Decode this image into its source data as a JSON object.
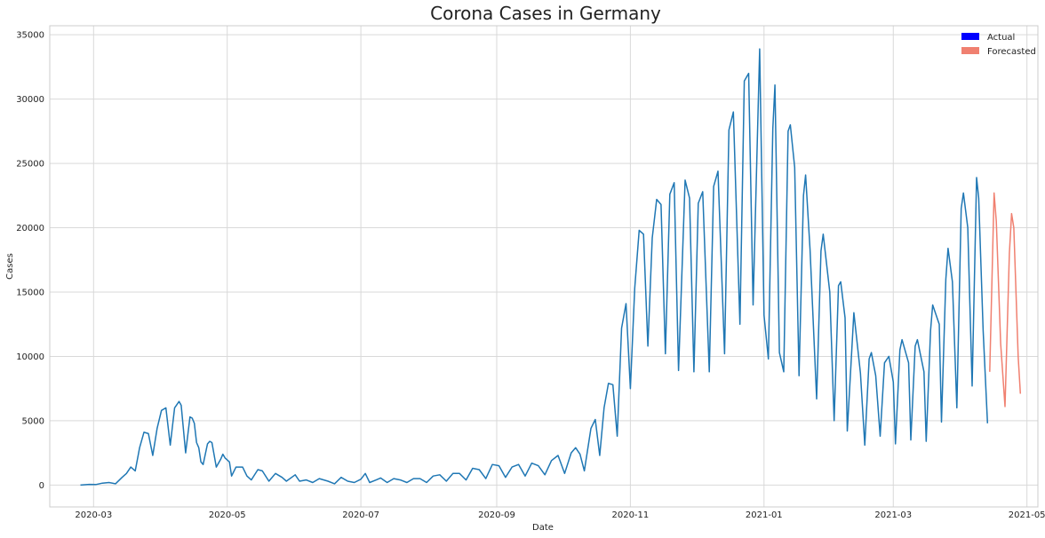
{
  "chart_data": {
    "type": "line",
    "title": "Corona Cases in Germany",
    "xlabel": "Date",
    "ylabel": "Cases",
    "x_tick_labels": [
      "2020-03",
      "2020-05",
      "2020-07",
      "2020-09",
      "2020-11",
      "2021-01",
      "2021-03",
      "2021-05"
    ],
    "y_tick_labels": [
      "0",
      "5000",
      "10000",
      "15000",
      "20000",
      "25000",
      "30000",
      "35000"
    ],
    "xlim": [
      "2020-02-10",
      "2021-05-06"
    ],
    "ylim": [
      -1700,
      35700
    ],
    "grid": true,
    "legend_position": "top-right",
    "legend": [
      {
        "label": "Actual",
        "color": "#0000ff"
      },
      {
        "label": "Forecasted",
        "color": "#f08070"
      }
    ],
    "series": [
      {
        "name": "Actual",
        "color": "#1f77b4",
        "points": [
          [
            "2020-02-24",
            0
          ],
          [
            "2020-02-28",
            50
          ],
          [
            "2020-03-02",
            40
          ],
          [
            "2020-03-05",
            150
          ],
          [
            "2020-03-08",
            200
          ],
          [
            "2020-03-11",
            100
          ],
          [
            "2020-03-14",
            600
          ],
          [
            "2020-03-16",
            900
          ],
          [
            "2020-03-18",
            1400
          ],
          [
            "2020-03-20",
            1100
          ],
          [
            "2020-03-22",
            2900
          ],
          [
            "2020-03-24",
            4100
          ],
          [
            "2020-03-26",
            4000
          ],
          [
            "2020-03-28",
            2300
          ],
          [
            "2020-03-30",
            4400
          ],
          [
            "2020-04-01",
            5800
          ],
          [
            "2020-04-03",
            6000
          ],
          [
            "2020-04-05",
            3100
          ],
          [
            "2020-04-07",
            6000
          ],
          [
            "2020-04-09",
            6500
          ],
          [
            "2020-04-10",
            6200
          ],
          [
            "2020-04-12",
            2500
          ],
          [
            "2020-04-14",
            5300
          ],
          [
            "2020-04-15",
            5200
          ],
          [
            "2020-04-16",
            4800
          ],
          [
            "2020-04-17",
            3300
          ],
          [
            "2020-04-18",
            2900
          ],
          [
            "2020-04-19",
            1800
          ],
          [
            "2020-04-20",
            1600
          ],
          [
            "2020-04-22",
            3200
          ],
          [
            "2020-04-23",
            3400
          ],
          [
            "2020-04-24",
            3300
          ],
          [
            "2020-04-26",
            1400
          ],
          [
            "2020-04-28",
            2000
          ],
          [
            "2020-04-29",
            2400
          ],
          [
            "2020-04-30",
            2100
          ],
          [
            "2020-05-02",
            1800
          ],
          [
            "2020-05-03",
            700
          ],
          [
            "2020-05-05",
            1400
          ],
          [
            "2020-05-08",
            1400
          ],
          [
            "2020-05-10",
            700
          ],
          [
            "2020-05-12",
            400
          ],
          [
            "2020-05-15",
            1200
          ],
          [
            "2020-05-17",
            1100
          ],
          [
            "2020-05-20",
            300
          ],
          [
            "2020-05-23",
            900
          ],
          [
            "2020-05-26",
            600
          ],
          [
            "2020-05-28",
            300
          ],
          [
            "2020-06-01",
            800
          ],
          [
            "2020-06-03",
            300
          ],
          [
            "2020-06-06",
            400
          ],
          [
            "2020-06-09",
            200
          ],
          [
            "2020-06-12",
            500
          ],
          [
            "2020-06-16",
            300
          ],
          [
            "2020-06-19",
            100
          ],
          [
            "2020-06-22",
            600
          ],
          [
            "2020-06-25",
            300
          ],
          [
            "2020-06-28",
            200
          ],
          [
            "2020-07-01",
            450
          ],
          [
            "2020-07-03",
            900
          ],
          [
            "2020-07-05",
            200
          ],
          [
            "2020-07-08",
            400
          ],
          [
            "2020-07-10",
            550
          ],
          [
            "2020-07-13",
            200
          ],
          [
            "2020-07-16",
            500
          ],
          [
            "2020-07-19",
            400
          ],
          [
            "2020-07-22",
            200
          ],
          [
            "2020-07-25",
            500
          ],
          [
            "2020-07-28",
            500
          ],
          [
            "2020-07-31",
            200
          ],
          [
            "2020-08-03",
            700
          ],
          [
            "2020-08-06",
            800
          ],
          [
            "2020-08-09",
            300
          ],
          [
            "2020-08-12",
            900
          ],
          [
            "2020-08-15",
            900
          ],
          [
            "2020-08-18",
            400
          ],
          [
            "2020-08-21",
            1300
          ],
          [
            "2020-08-24",
            1200
          ],
          [
            "2020-08-27",
            500
          ],
          [
            "2020-08-30",
            1600
          ],
          [
            "2020-09-02",
            1500
          ],
          [
            "2020-09-05",
            600
          ],
          [
            "2020-09-08",
            1400
          ],
          [
            "2020-09-11",
            1600
          ],
          [
            "2020-09-14",
            700
          ],
          [
            "2020-09-17",
            1700
          ],
          [
            "2020-09-20",
            1500
          ],
          [
            "2020-09-23",
            800
          ],
          [
            "2020-09-26",
            1900
          ],
          [
            "2020-09-29",
            2300
          ],
          [
            "2020-10-02",
            900
          ],
          [
            "2020-10-05",
            2500
          ],
          [
            "2020-10-07",
            2900
          ],
          [
            "2020-10-09",
            2400
          ],
          [
            "2020-10-11",
            1100
          ],
          [
            "2020-10-14",
            4400
          ],
          [
            "2020-10-16",
            5100
          ],
          [
            "2020-10-18",
            2300
          ],
          [
            "2020-10-20",
            6000
          ],
          [
            "2020-10-22",
            7900
          ],
          [
            "2020-10-24",
            7800
          ],
          [
            "2020-10-26",
            3800
          ],
          [
            "2020-10-28",
            12200
          ],
          [
            "2020-10-30",
            14100
          ],
          [
            "2020-11-01",
            7500
          ],
          [
            "2020-11-03",
            15300
          ],
          [
            "2020-11-05",
            19800
          ],
          [
            "2020-11-07",
            19500
          ],
          [
            "2020-11-09",
            10800
          ],
          [
            "2020-11-11",
            19200
          ],
          [
            "2020-11-13",
            22200
          ],
          [
            "2020-11-15",
            21800
          ],
          [
            "2020-11-17",
            10200
          ],
          [
            "2020-11-19",
            22600
          ],
          [
            "2020-11-21",
            23500
          ],
          [
            "2020-11-23",
            8900
          ],
          [
            "2020-11-26",
            23700
          ],
          [
            "2020-11-28",
            22300
          ],
          [
            "2020-11-30",
            8800
          ],
          [
            "2020-12-02",
            21900
          ],
          [
            "2020-12-04",
            22800
          ],
          [
            "2020-12-07",
            8800
          ],
          [
            "2020-12-09",
            23200
          ],
          [
            "2020-12-11",
            24400
          ],
          [
            "2020-12-14",
            10200
          ],
          [
            "2020-12-16",
            27600
          ],
          [
            "2020-12-18",
            29000
          ],
          [
            "2020-12-21",
            12500
          ],
          [
            "2020-12-23",
            31400
          ],
          [
            "2020-12-25",
            32000
          ],
          [
            "2020-12-27",
            14000
          ],
          [
            "2020-12-30",
            33900
          ],
          [
            "2021-01-01",
            13200
          ],
          [
            "2021-01-03",
            9800
          ],
          [
            "2021-01-05",
            27700
          ],
          [
            "2021-01-06",
            31100
          ],
          [
            "2021-01-08",
            10300
          ],
          [
            "2021-01-10",
            8800
          ],
          [
            "2021-01-12",
            27500
          ],
          [
            "2021-01-13",
            28000
          ],
          [
            "2021-01-15",
            24700
          ],
          [
            "2021-01-17",
            8500
          ],
          [
            "2021-01-19",
            22500
          ],
          [
            "2021-01-20",
            24100
          ],
          [
            "2021-01-22",
            18300
          ],
          [
            "2021-01-25",
            6700
          ],
          [
            "2021-01-27",
            18200
          ],
          [
            "2021-01-28",
            19500
          ],
          [
            "2021-01-31",
            15000
          ],
          [
            "2021-02-02",
            5000
          ],
          [
            "2021-02-04",
            15500
          ],
          [
            "2021-02-05",
            15800
          ],
          [
            "2021-02-07",
            13000
          ],
          [
            "2021-02-08",
            4200
          ],
          [
            "2021-02-11",
            13400
          ],
          [
            "2021-02-14",
            8700
          ],
          [
            "2021-02-16",
            3100
          ],
          [
            "2021-02-18",
            9800
          ],
          [
            "2021-02-19",
            10300
          ],
          [
            "2021-02-21",
            8500
          ],
          [
            "2021-02-23",
            3800
          ],
          [
            "2021-02-25",
            9500
          ],
          [
            "2021-02-27",
            10000
          ],
          [
            "2021-03-01",
            8000
          ],
          [
            "2021-03-02",
            3200
          ],
          [
            "2021-03-04",
            10500
          ],
          [
            "2021-03-05",
            11300
          ],
          [
            "2021-03-08",
            9500
          ],
          [
            "2021-03-09",
            3500
          ],
          [
            "2021-03-11",
            10800
          ],
          [
            "2021-03-12",
            11300
          ],
          [
            "2021-03-15",
            8800
          ],
          [
            "2021-03-16",
            3400
          ],
          [
            "2021-03-18",
            12000
          ],
          [
            "2021-03-19",
            14000
          ],
          [
            "2021-03-22",
            12500
          ],
          [
            "2021-03-23",
            4900
          ],
          [
            "2021-03-25",
            16000
          ],
          [
            "2021-03-26",
            18400
          ],
          [
            "2021-03-28",
            15800
          ],
          [
            "2021-03-30",
            6000
          ],
          [
            "2021-04-01",
            21500
          ],
          [
            "2021-04-02",
            22700
          ],
          [
            "2021-04-04",
            20000
          ],
          [
            "2021-04-06",
            7700
          ],
          [
            "2021-04-08",
            23900
          ],
          [
            "2021-04-09",
            22300
          ],
          [
            "2021-04-11",
            12000
          ],
          [
            "2021-04-13",
            4800
          ]
        ]
      },
      {
        "name": "Forecasted",
        "color": "#f08070",
        "points": [
          [
            "2021-04-14",
            8800
          ],
          [
            "2021-04-16",
            22700
          ],
          [
            "2021-04-17",
            20500
          ],
          [
            "2021-04-19",
            11000
          ],
          [
            "2021-04-21",
            6100
          ],
          [
            "2021-04-23",
            18000
          ],
          [
            "2021-04-24",
            21100
          ],
          [
            "2021-04-25",
            20000
          ],
          [
            "2021-04-27",
            10000
          ],
          [
            "2021-04-28",
            7100
          ]
        ]
      }
    ]
  }
}
